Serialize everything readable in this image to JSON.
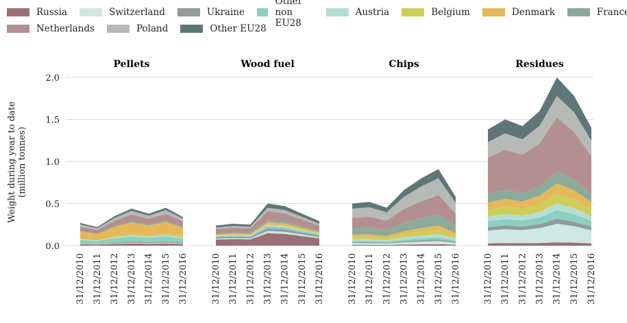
{
  "chart_data": {
    "type": "area",
    "stacked": true,
    "ylabel_line1": "Weight during year to date",
    "ylabel_line2": "(million tonnes)",
    "ylim": [
      0,
      2.0
    ],
    "yticks": [
      "0.0",
      "0.5",
      "1.0",
      "1.5",
      "2.0"
    ],
    "grid": true,
    "legend_position": "top",
    "series_names": [
      "Russia",
      "Switzerland",
      "Ukraine",
      "Other non EU28",
      "Austria",
      "Belgium",
      "Denmark",
      "France",
      "Netherlands",
      "Poland",
      "Other EU28"
    ],
    "colors": [
      "#9b7075",
      "#cfe8e3",
      "#8e9c9b",
      "#8ccfc1",
      "#b3ded6",
      "#cfcd5a",
      "#e6b85a",
      "#8aab9a",
      "#b3908f",
      "#b5bab7",
      "#5f7677"
    ],
    "x_dates": [
      "31/12/2010",
      "31/12/2011",
      "31/12/2012",
      "31/12/2013",
      "31/12/2014",
      "31/12/2015",
      "31/12/2016"
    ],
    "panels": [
      {
        "title": "Pellets",
        "x": [
          "31/12/2010",
          "31/12/2011",
          "31/12/2012",
          "31/12/2013",
          "31/12/2014",
          "31/12/2015",
          "31/12/2016"
        ],
        "totals": [
          0.27,
          0.22,
          0.35,
          0.44,
          0.38,
          0.45,
          0.34
        ],
        "shares": [
          0.06,
          0.02,
          0.03,
          0.14,
          0.03,
          0.03,
          0.32,
          0.03,
          0.18,
          0.1,
          0.06
        ]
      },
      {
        "title": "Wood fuel",
        "x": [
          "31/12/2010",
          "31/12/2011",
          "31/12/2012",
          "31/12/2013",
          "31/12/2014",
          "31/12/2015",
          "31/12/2016"
        ],
        "totals": [
          0.24,
          0.26,
          0.25,
          0.5,
          0.47,
          0.38,
          0.29
        ],
        "shares": [
          0.3,
          0.05,
          0.06,
          0.05,
          0.03,
          0.02,
          0.05,
          0.04,
          0.22,
          0.08,
          0.1
        ]
      },
      {
        "title": "Chips",
        "x": [
          "31/12/2010",
          "31/12/2011",
          "31/12/2012",
          "31/12/2013",
          "31/12/2014",
          "31/12/2015",
          "31/12/2016"
        ],
        "totals": [
          0.5,
          0.52,
          0.45,
          0.66,
          0.8,
          0.91,
          0.58
        ],
        "shares": [
          0.02,
          0.04,
          0.02,
          0.03,
          0.04,
          0.06,
          0.05,
          0.15,
          0.25,
          0.22,
          0.12
        ]
      },
      {
        "title": "Residues",
        "x": [
          "31/12/2010",
          "31/12/2011",
          "31/12/2012",
          "31/12/2013",
          "31/12/2014",
          "31/12/2015",
          "31/12/2016"
        ],
        "totals": [
          1.38,
          1.5,
          1.42,
          1.6,
          2.0,
          1.78,
          1.4
        ],
        "shares": [
          0.02,
          0.11,
          0.03,
          0.05,
          0.04,
          0.06,
          0.06,
          0.07,
          0.32,
          0.13,
          0.11
        ]
      }
    ]
  }
}
